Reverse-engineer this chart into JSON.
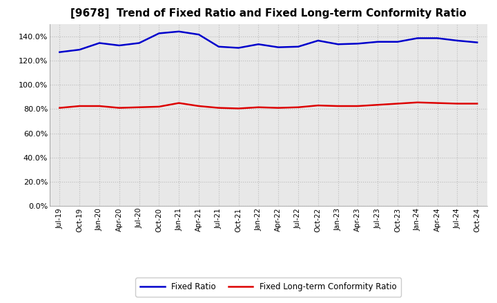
{
  "title": "[9678]  Trend of Fixed Ratio and Fixed Long-term Conformity Ratio",
  "x_labels": [
    "Jul-19",
    "Oct-19",
    "Jan-20",
    "Apr-20",
    "Jul-20",
    "Oct-20",
    "Jan-21",
    "Apr-21",
    "Jul-21",
    "Oct-21",
    "Jan-22",
    "Apr-22",
    "Jul-22",
    "Oct-22",
    "Jan-23",
    "Apr-23",
    "Jul-23",
    "Oct-23",
    "Jan-24",
    "Apr-24",
    "Jul-24",
    "Oct-24"
  ],
  "fixed_ratio": [
    127.0,
    129.0,
    134.5,
    132.5,
    134.5,
    142.5,
    144.0,
    141.5,
    131.5,
    130.5,
    133.5,
    131.0,
    131.5,
    136.5,
    133.5,
    134.0,
    135.5,
    135.5,
    138.5,
    138.5,
    136.5,
    135.0
  ],
  "fixed_lt_ratio": [
    81.0,
    82.5,
    82.5,
    81.0,
    81.5,
    82.0,
    85.0,
    82.5,
    81.0,
    80.5,
    81.5,
    81.0,
    81.5,
    83.0,
    82.5,
    82.5,
    83.5,
    84.5,
    85.5,
    85.0,
    84.5,
    84.5
  ],
  "fixed_ratio_color": "#0000cc",
  "fixed_lt_ratio_color": "#dd0000",
  "ylim": [
    0,
    150
  ],
  "yticks": [
    0,
    20,
    40,
    60,
    80,
    100,
    120,
    140
  ],
  "grid_color": "#bbbbbb",
  "background_color": "#ffffff",
  "plot_bg_color": "#e8e8e8",
  "legend_fixed": "Fixed Ratio",
  "legend_fixed_lt": "Fixed Long-term Conformity Ratio",
  "title_fontsize": 11,
  "line_width": 1.8
}
